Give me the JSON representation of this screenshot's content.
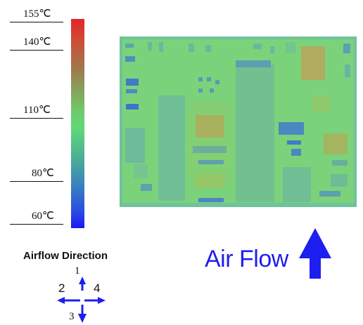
{
  "scale": {
    "labels": [
      "155℃",
      "140℃",
      "110℃",
      "80℃",
      "60℃"
    ]
  },
  "airflow_direction": {
    "title": "Airflow Direction",
    "numbers": [
      "1",
      "2",
      "3",
      "4"
    ]
  },
  "air_flow_label": "Air Flow",
  "colors": {
    "arrow_blue": "#1d1ef0",
    "board_base": "#7ad37a"
  }
}
